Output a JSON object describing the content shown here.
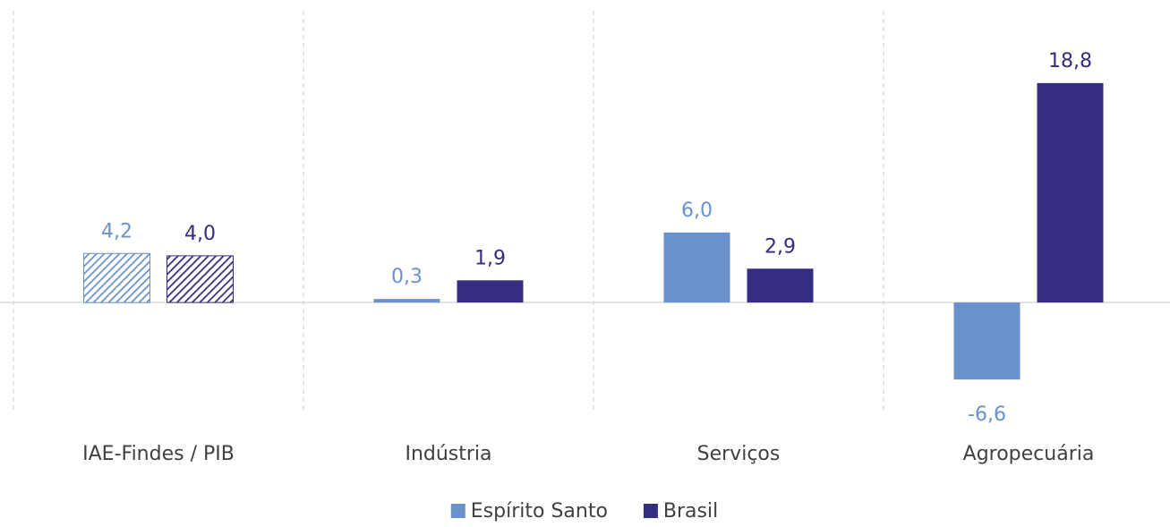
{
  "chart_data": {
    "type": "bar",
    "categories": [
      "IAE-Findes / PIB",
      "Indústria",
      "Serviços",
      "Agropecuária"
    ],
    "series": [
      {
        "name": "Espírito Santo",
        "color": "#6a91cb",
        "values": [
          4.2,
          0.3,
          6.0,
          -6.6
        ],
        "value_labels": [
          "4,2",
          "0,3",
          "6,0",
          "-6,6"
        ]
      },
      {
        "name": "Brasil",
        "color": "#342d82",
        "values": [
          4.0,
          1.9,
          2.9,
          18.8
        ],
        "value_labels": [
          "4,0",
          "1,9",
          "2,9",
          "18,8"
        ]
      }
    ],
    "hatched": [
      true,
      false,
      false,
      false
    ],
    "ylim": [
      -9.5,
      25
    ],
    "legend": "bottom"
  }
}
